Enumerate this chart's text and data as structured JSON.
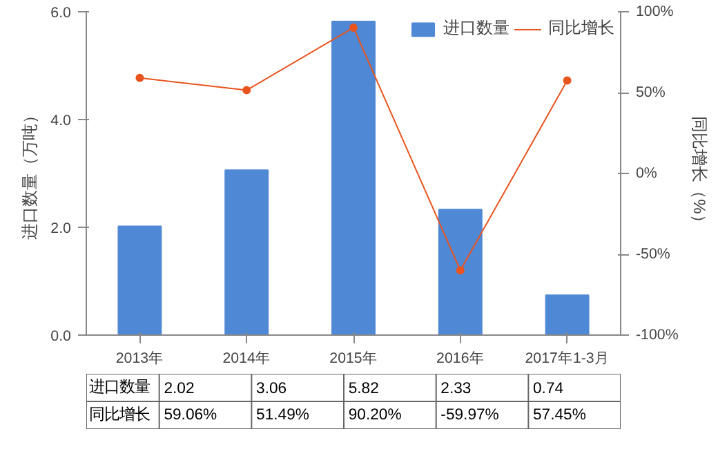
{
  "chart_data": {
    "type": "bar",
    "ylabel": "进口数量（万吨）",
    "y2label": "同比增长（%）",
    "categories": [
      "2013年",
      "2014年",
      "2015年",
      "2016年",
      "2017年1-3月"
    ],
    "ylim": [
      0,
      6
    ],
    "yticks": [
      {
        "value": 0,
        "label": "0.0"
      },
      {
        "value": 2,
        "label": "2.0"
      },
      {
        "value": 4,
        "label": "4.0"
      },
      {
        "value": 6,
        "label": "6.0"
      }
    ],
    "y2lim": [
      -100,
      100
    ],
    "y2ticks": [
      {
        "value": -100,
        "label": "-100%"
      },
      {
        "value": -50,
        "label": "-50%"
      },
      {
        "value": 0,
        "label": "0%"
      },
      {
        "value": 50,
        "label": "50%"
      },
      {
        "value": 100,
        "label": "100%"
      }
    ],
    "legend": "top",
    "grid": false,
    "marker": "circle",
    "series": [
      {
        "name": "进口数量",
        "color": "#4f88d4",
        "values": [
          2.02,
          3.06,
          5.82,
          2.33,
          0.74
        ],
        "value_labels": [
          "2.02",
          "3.06",
          "5.82",
          "2.33",
          "0.74"
        ]
      },
      {
        "name": "同比增长",
        "type": "line",
        "axis": "y2",
        "color": "#e8541e",
        "values": [
          59.06,
          51.49,
          90.2,
          -59.97,
          57.45
        ],
        "value_labels": [
          "59.06%",
          "51.49%",
          "90.20%",
          "-59.97%",
          "57.45%"
        ]
      }
    ]
  }
}
